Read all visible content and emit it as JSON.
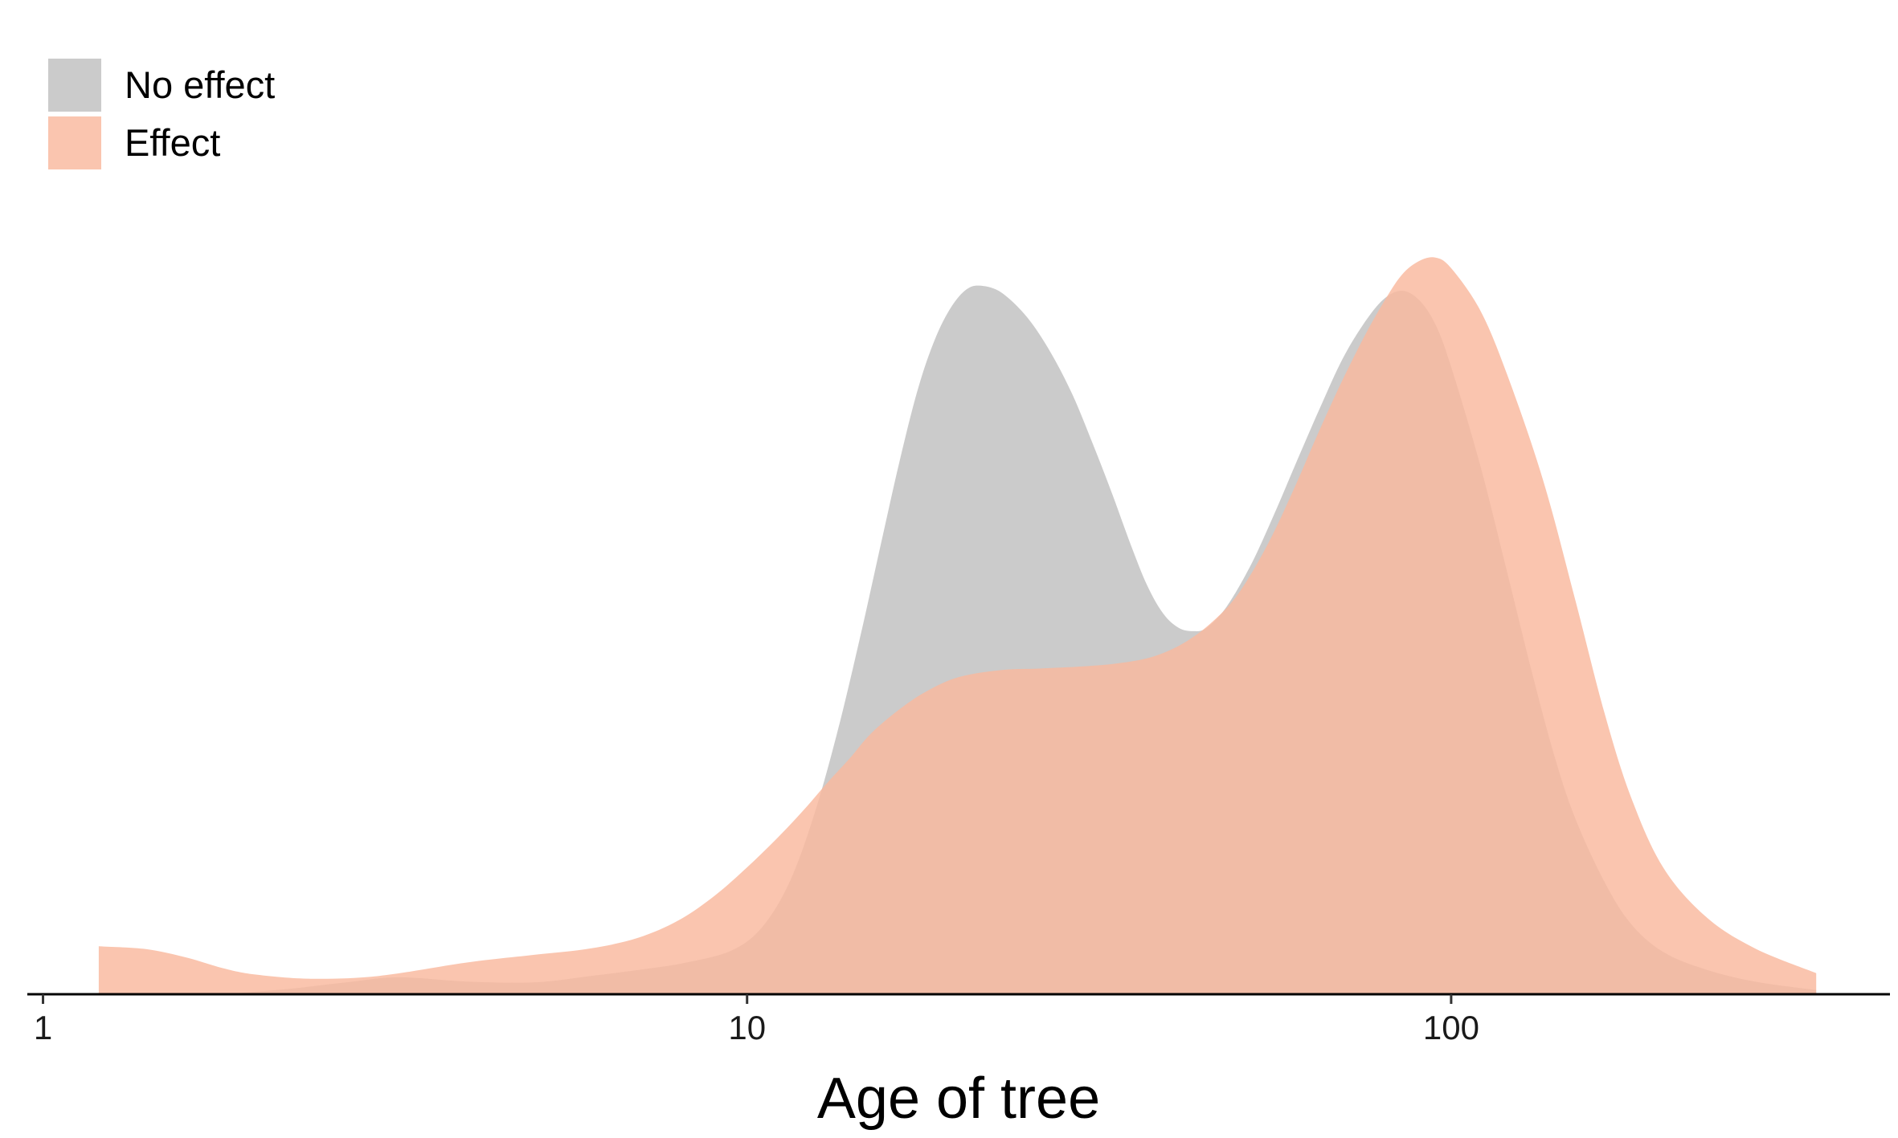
{
  "chart_data": {
    "type": "area",
    "subtype": "density",
    "title": "",
    "xlabel": "Age of tree",
    "ylabel": "",
    "x_scale": "log10",
    "xlim": [
      0.95,
      420
    ],
    "ylim": [
      0,
      1.08
    ],
    "x_ticks": [
      1,
      10,
      100
    ],
    "x_tick_labels": [
      "1",
      "10",
      "100"
    ],
    "y_axis_visible": false,
    "grid": false,
    "legend_position": "top-left",
    "series": [
      {
        "name": "No effect",
        "color": "#bdbdbd",
        "opacity": 0.78,
        "points": [
          [
            1.8,
            0.0
          ],
          [
            2.2,
            0.007
          ],
          [
            2.7,
            0.017
          ],
          [
            3.2,
            0.024
          ],
          [
            4.0,
            0.018
          ],
          [
            5.0,
            0.017
          ],
          [
            6.0,
            0.026
          ],
          [
            7.2,
            0.036
          ],
          [
            8.2,
            0.045
          ],
          [
            9.5,
            0.062
          ],
          [
            10.5,
            0.095
          ],
          [
            11.5,
            0.16
          ],
          [
            12.5,
            0.26
          ],
          [
            13.5,
            0.38
          ],
          [
            14.5,
            0.51
          ],
          [
            15.5,
            0.64
          ],
          [
            16.5,
            0.76
          ],
          [
            17.5,
            0.86
          ],
          [
            18.5,
            0.93
          ],
          [
            19.5,
            0.975
          ],
          [
            20.5,
            1.0
          ],
          [
            21.5,
            1.005
          ],
          [
            23.0,
            0.995
          ],
          [
            25.0,
            0.96
          ],
          [
            27.0,
            0.91
          ],
          [
            29.0,
            0.85
          ],
          [
            31.0,
            0.78
          ],
          [
            33.0,
            0.71
          ],
          [
            35.0,
            0.64
          ],
          [
            37.0,
            0.58
          ],
          [
            39.0,
            0.54
          ],
          [
            41.0,
            0.52
          ],
          [
            43.0,
            0.515
          ],
          [
            45.0,
            0.52
          ],
          [
            48.0,
            0.55
          ],
          [
            52.0,
            0.61
          ],
          [
            56.0,
            0.68
          ],
          [
            60.0,
            0.75
          ],
          [
            65.0,
            0.83
          ],
          [
            70.0,
            0.9
          ],
          [
            75.0,
            0.95
          ],
          [
            80.0,
            0.985
          ],
          [
            85.0,
            0.998
          ],
          [
            90.0,
            0.985
          ],
          [
            95.0,
            0.95
          ],
          [
            100.0,
            0.89
          ],
          [
            110.0,
            0.75
          ],
          [
            120.0,
            0.6
          ],
          [
            130.0,
            0.46
          ],
          [
            140.0,
            0.34
          ],
          [
            150.0,
            0.25
          ],
          [
            165.0,
            0.16
          ],
          [
            180.0,
            0.1
          ],
          [
            200.0,
            0.06
          ],
          [
            230.0,
            0.035
          ],
          [
            270.0,
            0.018
          ],
          [
            330.0,
            0.006
          ]
        ]
      },
      {
        "name": "Effect",
        "color": "#f9b89e",
        "opacity": 0.82,
        "points": [
          [
            1.2,
            0.068
          ],
          [
            1.4,
            0.064
          ],
          [
            1.6,
            0.052
          ],
          [
            1.8,
            0.037
          ],
          [
            2.0,
            0.028
          ],
          [
            2.4,
            0.022
          ],
          [
            3.0,
            0.026
          ],
          [
            4.0,
            0.045
          ],
          [
            5.0,
            0.056
          ],
          [
            6.0,
            0.065
          ],
          [
            7.0,
            0.08
          ],
          [
            8.0,
            0.105
          ],
          [
            9.0,
            0.14
          ],
          [
            10.0,
            0.18
          ],
          [
            11.0,
            0.22
          ],
          [
            12.0,
            0.26
          ],
          [
            13.0,
            0.3
          ],
          [
            14.0,
            0.335
          ],
          [
            15.0,
            0.37
          ],
          [
            16.5,
            0.405
          ],
          [
            18.0,
            0.43
          ],
          [
            20.0,
            0.45
          ],
          [
            23.0,
            0.46
          ],
          [
            26.0,
            0.462
          ],
          [
            30.0,
            0.465
          ],
          [
            34.0,
            0.47
          ],
          [
            38.0,
            0.48
          ],
          [
            42.0,
            0.5
          ],
          [
            46.0,
            0.53
          ],
          [
            50.0,
            0.57
          ],
          [
            55.0,
            0.64
          ],
          [
            60.0,
            0.72
          ],
          [
            65.0,
            0.8
          ],
          [
            70.0,
            0.87
          ],
          [
            75.0,
            0.93
          ],
          [
            80.0,
            0.98
          ],
          [
            85.0,
            1.02
          ],
          [
            90.0,
            1.04
          ],
          [
            95.0,
            1.045
          ],
          [
            100.0,
            1.03
          ],
          [
            110.0,
            0.97
          ],
          [
            120.0,
            0.88
          ],
          [
            135.0,
            0.73
          ],
          [
            150.0,
            0.56
          ],
          [
            165.0,
            0.4
          ],
          [
            180.0,
            0.28
          ],
          [
            200.0,
            0.18
          ],
          [
            230.0,
            0.11
          ],
          [
            270.0,
            0.065
          ],
          [
            330.0,
            0.03
          ]
        ]
      }
    ]
  }
}
